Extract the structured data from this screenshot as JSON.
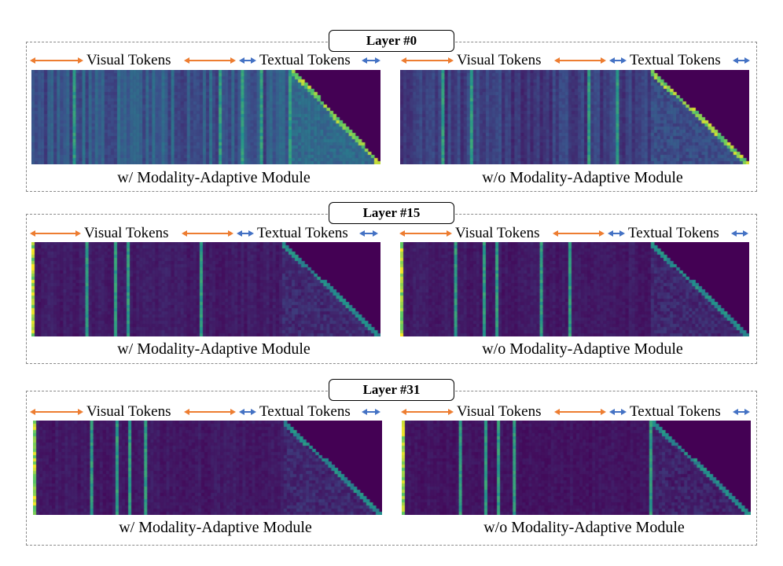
{
  "labels": {
    "visual": "Visual Tokens",
    "textual": "Textual Tokens",
    "with_module": "w/ Modality-Adaptive Module",
    "without_module": "w/o Modality-Adaptive Module"
  },
  "colors": {
    "visual_arrow": "#ed7d31",
    "textual_arrow": "#4472c4",
    "heatmap_background": "#440154",
    "group_border": "#8a8a8a"
  },
  "layers": [
    {
      "title": "Layer #0",
      "panels": [
        {
          "variant": "with",
          "bright_cols": [
            0.12,
            0.54,
            0.6,
            0.66,
            0.74
          ],
          "diag_start": 0.75,
          "base_intensity": 0.35,
          "left_band": false
        },
        {
          "variant": "without",
          "bright_cols": [
            0.12,
            0.2,
            0.54,
            0.62
          ],
          "diag_start": 0.72,
          "base_intensity": 0.22,
          "left_band": false
        }
      ]
    },
    {
      "title": "Layer #15",
      "panels": [
        {
          "variant": "with",
          "bright_cols": [
            0.16,
            0.24,
            0.28,
            0.49
          ],
          "diag_start": 0.72,
          "base_intensity": 0.08,
          "left_band": true
        },
        {
          "variant": "without",
          "bright_cols": [
            0.16,
            0.24,
            0.28,
            0.4,
            0.49
          ],
          "diag_start": 0.72,
          "base_intensity": 0.07,
          "left_band": true
        }
      ]
    },
    {
      "title": "Layer #31",
      "panels": [
        {
          "variant": "with",
          "bright_cols": [
            0.17,
            0.24,
            0.28,
            0.32
          ],
          "diag_start": 0.72,
          "base_intensity": 0.07,
          "left_band": true
        },
        {
          "variant": "without",
          "bright_cols": [
            0.17,
            0.24,
            0.28,
            0.32,
            0.71
          ],
          "diag_start": 0.72,
          "base_intensity": 0.05,
          "left_band": true
        }
      ]
    }
  ]
}
